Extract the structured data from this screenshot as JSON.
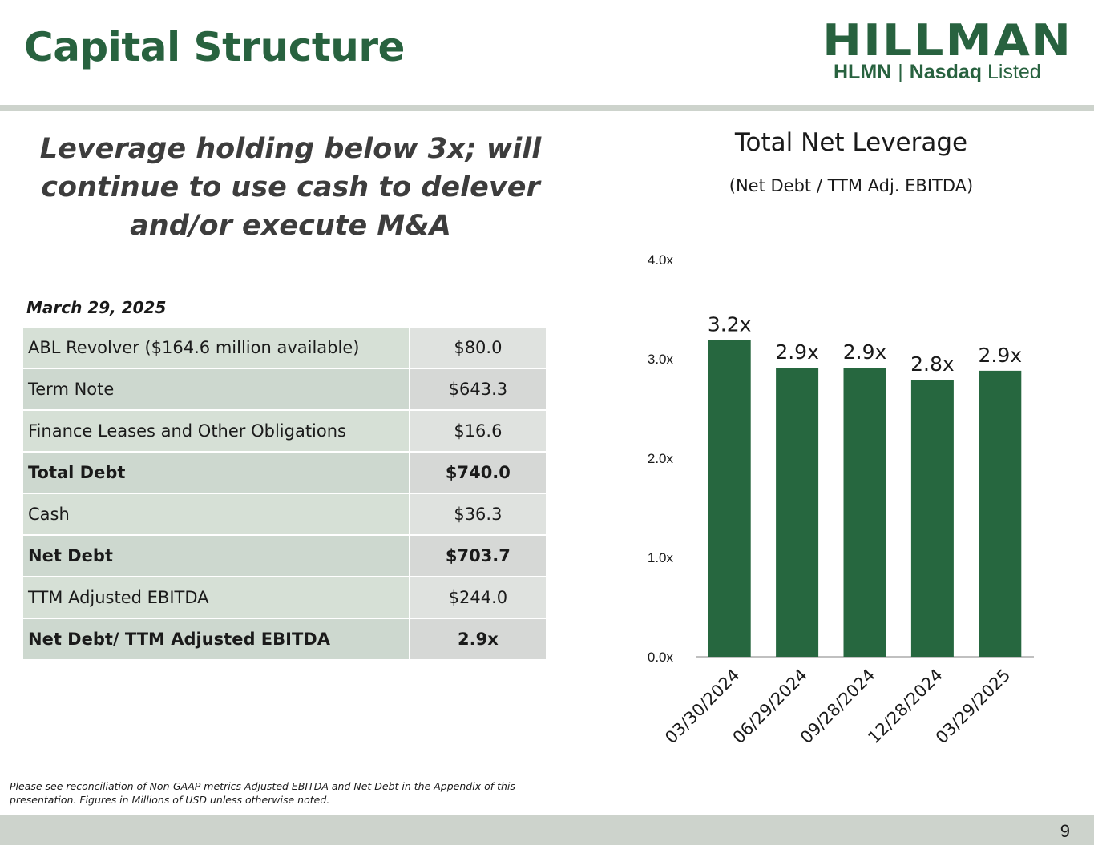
{
  "page": {
    "title": "Capital Structure",
    "headline": "Leverage holding below 3x; will continue to use cash to delever and/or execute M&A",
    "as_of": "March 29, 2025",
    "footnote": "Please see reconciliation of Non-GAAP metrics Adjusted EBITDA and Net Debt in the Appendix of this presentation. Figures in Millions of USD unless otherwise noted.",
    "page_number": "9"
  },
  "logo": {
    "word": "HILLMAN",
    "ticker": "HLMN",
    "exchange_bold": "Nasdaq",
    "exchange_light": "Listed"
  },
  "table": {
    "rows": [
      {
        "label": "ABL Revolver ($164.6 million available)",
        "value": "$80.0",
        "bold": false
      },
      {
        "label": "Term Note",
        "value": "$643.3",
        "bold": false
      },
      {
        "label": "Finance Leases and Other Obligations",
        "value": "$16.6",
        "bold": false
      },
      {
        "label": "Total Debt",
        "value": "$740.0",
        "bold": true
      },
      {
        "label": "Cash",
        "value": "$36.3",
        "bold": false
      },
      {
        "label": "Net Debt",
        "value": "$703.7",
        "bold": true
      },
      {
        "label": "TTM Adjusted EBITDA",
        "value": "$244.0",
        "bold": false
      },
      {
        "label": "Net Debt/ TTM Adjusted EBITDA",
        "value": "2.9x",
        "bold": true
      }
    ]
  },
  "chart_data": {
    "type": "bar",
    "title": "Total Net Leverage",
    "subtitle": "(Net Debt / TTM Adj. EBITDA)",
    "categories": [
      "03/30/2024",
      "06/29/2024",
      "09/28/2024",
      "12/28/2024",
      "03/29/2025"
    ],
    "values": [
      3.19,
      2.91,
      2.91,
      2.79,
      2.88
    ],
    "data_labels": [
      "3.2x",
      "2.9x",
      "2.9x",
      "2.8x",
      "2.9x"
    ],
    "yticks": [
      "0.0x",
      "1.0x",
      "2.0x",
      "3.0x",
      "4.0x"
    ],
    "ylim": [
      0,
      4
    ],
    "grid": false,
    "bar_color": "#26673f"
  },
  "colors": {
    "brand_green": "#28623f",
    "bar_green": "#26673f"
  }
}
